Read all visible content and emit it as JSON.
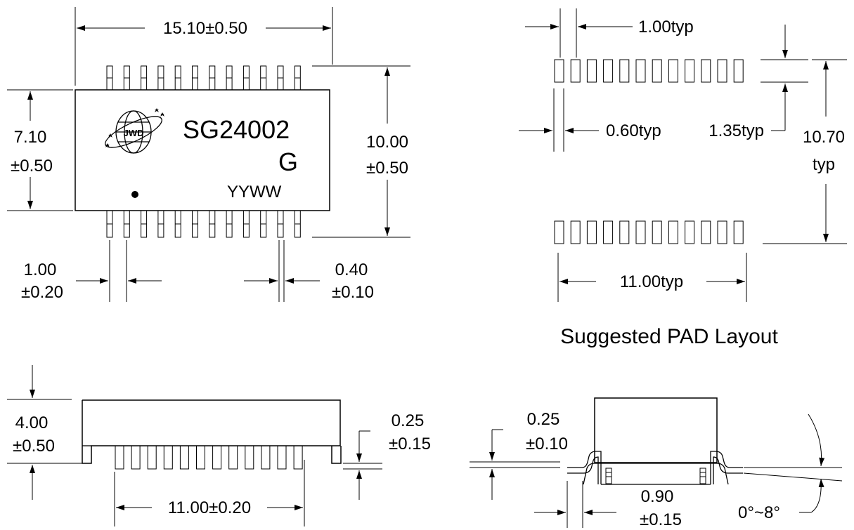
{
  "top_view": {
    "width_dim": "15.10±0.50",
    "body_height_dim": [
      "7.10",
      "±0.50"
    ],
    "overall_height_dim": [
      "10.00",
      "±0.50"
    ],
    "pitch_dim": [
      "1.00",
      "±0.20"
    ],
    "lead_width_dim": [
      "0.40",
      "±0.10"
    ],
    "marking": {
      "part": "SG24002",
      "grade": "G",
      "date_code": "YYWW",
      "logo_text": "JWD"
    }
  },
  "pad_layout": {
    "title": "Suggested PAD Layout",
    "pad_pitch": "1.00typ",
    "pad_width": "0.60typ",
    "pad_length": "1.35typ",
    "row_span": [
      "10.70",
      "typ"
    ],
    "row_length": "11.00typ"
  },
  "side_view": {
    "height_dim": [
      "4.00",
      "±0.50"
    ],
    "standoff_dim": [
      "0.25",
      "±0.15"
    ],
    "lead_span_dim": "11.00±0.20"
  },
  "end_view": {
    "lead_thickness_dim": [
      "0.25",
      "±0.10"
    ],
    "foot_length_dim": [
      "0.90",
      "±0.15"
    ],
    "angle_dim": "0°~8°"
  }
}
